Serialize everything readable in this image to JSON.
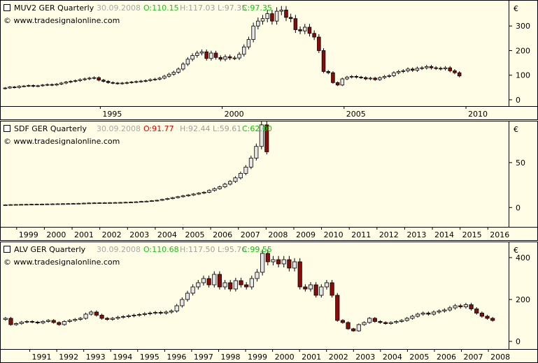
{
  "currency_symbol": "€",
  "watermark": "© www.tradesignalonline.com",
  "colors": {
    "background": "#fffde5",
    "up_body": "#e6e6e6",
    "down_body": "#8b0a0a",
    "open_value": "#1fbf1f",
    "open_value_red": "#e00000",
    "close_value": "#00cc00",
    "high_low_text": "#a0a0a0",
    "grid_frame": "#000000"
  },
  "chart_data": [
    {
      "type": "candlestick",
      "title": "MUV2 GER Quarterly",
      "date": "30.09.2008",
      "open_label": "O:110.15",
      "high_low_label": "H:117.03 L:97.35",
      "close_label": "C:97.35",
      "open_color": "green",
      "ylim": [
        -20,
        400
      ],
      "y_ticks": [
        0,
        100,
        200,
        300
      ],
      "x_start": 1991.0,
      "x_end": 2011.75,
      "x_ticks": [
        1995,
        2000,
        2005,
        2010
      ],
      "x_tick_labels": [
        "1995",
        "2000",
        "2005",
        "2010"
      ],
      "closes": [
        48,
        52,
        50,
        55,
        56,
        58,
        55,
        57,
        60,
        62,
        60,
        64,
        68,
        72,
        75,
        78,
        82,
        85,
        88,
        90,
        80,
        75,
        70,
        68,
        66,
        68,
        70,
        72,
        74,
        76,
        78,
        82,
        84,
        88,
        96,
        104,
        112,
        125,
        145,
        165,
        180,
        190,
        195,
        168,
        190,
        172,
        165,
        175,
        170,
        170,
        185,
        215,
        245,
        300,
        320,
        330,
        350,
        320,
        360,
        365,
        335,
        330,
        285,
        280,
        295,
        270,
        255,
        200,
        115,
        110,
        70,
        60,
        85,
        92,
        95,
        92,
        90,
        85,
        88,
        82,
        90,
        95,
        98,
        110,
        115,
        118,
        125,
        120,
        128,
        130,
        135,
        130,
        128,
        126,
        130,
        118,
        110,
        97
      ]
    },
    {
      "type": "candlestick",
      "title": "SDF GER Quarterly",
      "date": "30.09.2008",
      "open_label": "O:91.77",
      "high_low_label": "H:92.44 L:59.61",
      "close_label": "C:62.00",
      "open_color": "red",
      "ylim": [
        -20,
        95
      ],
      "y_ticks": [
        0,
        50
      ],
      "x_start": 1998.5,
      "x_end": 2016.75,
      "x_ticks": [
        1999,
        2000,
        2001,
        2002,
        2003,
        2004,
        2005,
        2006,
        2007,
        2008,
        2009,
        2010,
        2011,
        2012,
        2013,
        2014,
        2015,
        2016
      ],
      "x_tick_labels": [
        "1999",
        "2000",
        "2001",
        "2002",
        "2003",
        "2004",
        "2005",
        "2006",
        "2007",
        "2008",
        "2009",
        "2010",
        "2011",
        "2012",
        "2013",
        "2014",
        "2015",
        "2016"
      ],
      "closes": [
        3,
        3.2,
        3.3,
        3.4,
        3.5,
        3.6,
        3.7,
        3.8,
        3.9,
        4,
        4.1,
        4.2,
        4.3,
        4.4,
        4.6,
        4.8,
        5,
        5.1,
        5.2,
        5.3,
        5.4,
        5.5,
        5.6,
        5.8,
        6,
        6.3,
        6.7,
        7,
        7.5,
        8,
        9,
        10,
        11,
        12,
        13,
        14,
        15,
        16,
        17,
        19,
        21,
        23,
        26,
        29,
        33,
        38,
        45,
        55,
        68,
        92,
        62
      ]
    },
    {
      "type": "candlestick",
      "title": "ALV GER Quarterly",
      "date": "30.09.2008",
      "open_label": "O:110.68",
      "high_low_label": "H:117.50 L:95.76",
      "close_label": "C:99.55",
      "open_color": "green",
      "ylim": [
        -30,
        470
      ],
      "y_ticks": [
        0,
        200,
        400
      ],
      "x_start": 1990.0,
      "x_end": 2008.75,
      "x_ticks": [
        1991,
        1992,
        1993,
        1994,
        1995,
        1996,
        1997,
        1998,
        1999,
        2000,
        2001,
        2002,
        2003,
        2004,
        2005,
        2006,
        2007,
        2008
      ],
      "x_tick_labels": [
        "1991",
        "1992",
        "1993",
        "1994",
        "1995",
        "1996",
        "1997",
        "1998",
        "1999",
        "2000",
        "2001",
        "2002",
        "2003",
        "2004",
        "2005",
        "2006",
        "2007",
        "2008"
      ],
      "closes": [
        110,
        80,
        85,
        92,
        95,
        92,
        88,
        95,
        100,
        90,
        80,
        95,
        100,
        105,
        110,
        130,
        140,
        125,
        110,
        105,
        110,
        115,
        118,
        122,
        125,
        128,
        132,
        135,
        138,
        135,
        140,
        145,
        170,
        200,
        230,
        260,
        280,
        300,
        270,
        320,
        260,
        280,
        250,
        290,
        270,
        260,
        300,
        330,
        420,
        380,
        390,
        370,
        390,
        350,
        380,
        260,
        250,
        270,
        220,
        260,
        280,
        220,
        100,
        90,
        60,
        50,
        80,
        90,
        110,
        95,
        90,
        85,
        90,
        95,
        100,
        110,
        120,
        130,
        135,
        130,
        140,
        145,
        150,
        160,
        170,
        165,
        175,
        155,
        135,
        120,
        110,
        100
      ]
    }
  ]
}
